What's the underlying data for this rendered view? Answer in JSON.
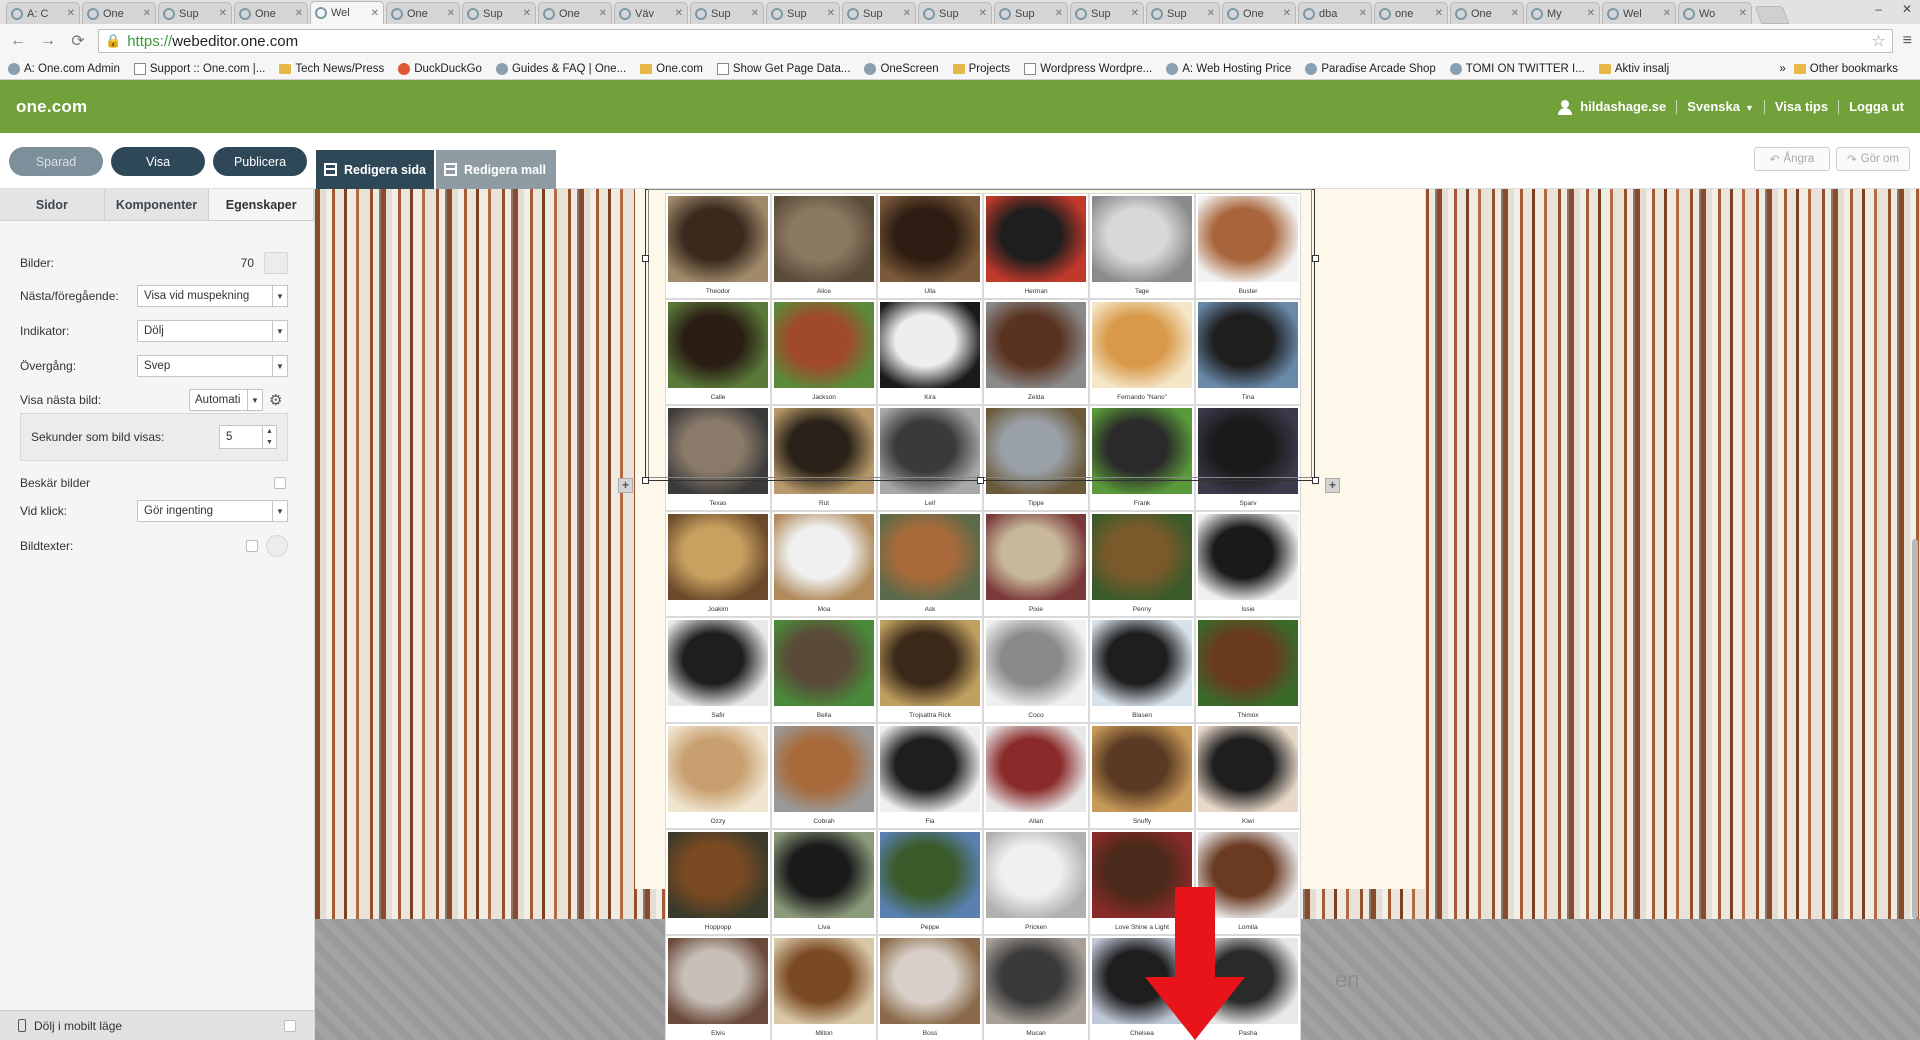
{
  "browser": {
    "tabs": [
      {
        "label": "A: C",
        "active": false
      },
      {
        "label": "One",
        "active": false
      },
      {
        "label": "Sup",
        "active": false
      },
      {
        "label": "One",
        "active": false
      },
      {
        "label": "Wel",
        "active": true
      },
      {
        "label": "One",
        "active": false
      },
      {
        "label": "Sup",
        "active": false
      },
      {
        "label": "One",
        "active": false
      },
      {
        "label": "Väv",
        "active": false
      },
      {
        "label": "Sup",
        "active": false
      },
      {
        "label": "Sup",
        "active": false
      },
      {
        "label": "Sup",
        "active": false
      },
      {
        "label": "Sup",
        "active": false
      },
      {
        "label": "Sup",
        "active": false
      },
      {
        "label": "Sup",
        "active": false
      },
      {
        "label": "Sup",
        "active": false
      },
      {
        "label": "One",
        "active": false
      },
      {
        "label": "dba",
        "active": false
      },
      {
        "label": "one",
        "active": false
      },
      {
        "label": "One",
        "active": false
      },
      {
        "label": "My",
        "active": false
      },
      {
        "label": "Wel",
        "active": false
      },
      {
        "label": "Wo",
        "active": false
      }
    ],
    "url_scheme": "https://",
    "url_rest": "webeditor.one.com",
    "bookmarks": [
      {
        "label": "A: One.com Admin",
        "icon": "globe"
      },
      {
        "label": "Support :: One.com |...",
        "icon": "page"
      },
      {
        "label": "Tech News/Press",
        "icon": "folder"
      },
      {
        "label": "DuckDuckGo",
        "icon": "duck"
      },
      {
        "label": "Guides & FAQ | One...",
        "icon": "globe"
      },
      {
        "label": "One.com",
        "icon": "folder"
      },
      {
        "label": "Show Get Page Data...",
        "icon": "page"
      },
      {
        "label": "OneScreen",
        "icon": "globe"
      },
      {
        "label": "Projects",
        "icon": "folder"
      },
      {
        "label": "Wordpress Wordpre...",
        "icon": "page"
      },
      {
        "label": "A: Web Hosting Price",
        "icon": "globe"
      },
      {
        "label": "Paradise Arcade Shop",
        "icon": "globe"
      },
      {
        "label": "TOMI ON TWITTER I...",
        "icon": "globe"
      },
      {
        "label": "Aktiv insalj",
        "icon": "folder"
      }
    ],
    "bookmarks_overflow": "»",
    "other_bookmarks": "Other bookmarks"
  },
  "header": {
    "logo": "one.com",
    "domain": "hildashage.se",
    "language": "Svenska",
    "tips": "Visa tips",
    "logout": "Logga ut"
  },
  "toolbar": {
    "saved": "Sparad",
    "view": "Visa",
    "publish": "Publicera",
    "edit_page": "Redigera sida",
    "edit_template": "Redigera mall",
    "undo": "Ångra",
    "redo": "Gör om"
  },
  "panel": {
    "tabs": [
      "Sidor",
      "Komponenter",
      "Egenskaper"
    ],
    "bilder_label": "Bilder:",
    "bilder_count": "70",
    "nasta_label": "Nästa/föregående:",
    "nasta_value": "Visa vid muspekning",
    "indikator_label": "Indikator:",
    "indikator_value": "Dölj",
    "overgang_label": "Övergång:",
    "overgang_value": "Svep",
    "visa_nasta_label": "Visa nästa bild:",
    "visa_nasta_value": "Automati",
    "sekunder_label": "Sekunder som bild visas:",
    "sekunder_value": "5",
    "beskar_label": "Beskär bilder",
    "vid_klick_label": "Vid klick:",
    "vid_klick_value": "Gör ingenting",
    "bildtexter_label": "Bildtexter:",
    "mobile_label": "Dölj i mobilt läge"
  },
  "canvas": {
    "footer_text": "en",
    "gallery": [
      {
        "cap": "Theodor",
        "c1": "#3a2a1e",
        "c2": "#a08a6a"
      },
      {
        "cap": "Alice",
        "c1": "#8a7a62",
        "c2": "#5a4a38"
      },
      {
        "cap": "Ulla",
        "c1": "#2e1d12",
        "c2": "#7a5a3a"
      },
      {
        "cap": "Herman",
        "c1": "#1e1e1e",
        "c2": "#c0392b"
      },
      {
        "cap": "Tage",
        "c1": "#d8d8d8",
        "c2": "#8a8a8a"
      },
      {
        "cap": "Buster",
        "c1": "#a8643a",
        "c2": "#f2f2f2"
      },
      {
        "cap": "Calle",
        "c1": "#2a1e14",
        "c2": "#5a7a3a"
      },
      {
        "cap": "Jackson",
        "c1": "#a04a2a",
        "c2": "#5a8a3a"
      },
      {
        "cap": "Kira",
        "c1": "#eeeeee",
        "c2": "#1a1a1a"
      },
      {
        "cap": "Zelda",
        "c1": "#5a3220",
        "c2": "#8a8a8a"
      },
      {
        "cap": "Fernando \"Nano\"",
        "c1": "#d89a4a",
        "c2": "#f5e6c8"
      },
      {
        "cap": "Tina",
        "c1": "#1e1e1e",
        "c2": "#6a8aaa"
      },
      {
        "cap": "Texas",
        "c1": "#8a7a6a",
        "c2": "#3a3a3a"
      },
      {
        "cap": "Rut",
        "c1": "#2a2218",
        "c2": "#b89a6a"
      },
      {
        "cap": "Leif",
        "c1": "#3a3a3a",
        "c2": "#a8a8a8"
      },
      {
        "cap": "Tippe",
        "c1": "#9aa0a8",
        "c2": "#6a5a3a"
      },
      {
        "cap": "Frank",
        "c1": "#2a2a2a",
        "c2": "#5a9a3a"
      },
      {
        "cap": "Sparv",
        "c1": "#1a1a1a",
        "c2": "#3a3a4a"
      },
      {
        "cap": "Joakim",
        "c1": "#c8a060",
        "c2": "#6a4a2a"
      },
      {
        "cap": "Moa",
        "c1": "#f0f0f0",
        "c2": "#b08a5a"
      },
      {
        "cap": "Ask",
        "c1": "#a86a3a",
        "c2": "#5a6a4a"
      },
      {
        "cap": "Pixie",
        "c1": "#c8b89a",
        "c2": "#7a3a3a"
      },
      {
        "cap": "Penny",
        "c1": "#7a5a2a",
        "c2": "#3a5a2a"
      },
      {
        "cap": "Issie",
        "c1": "#1a1a1a",
        "c2": "#f0f0f0"
      },
      {
        "cap": "Safir",
        "c1": "#1e1e1e",
        "c2": "#e8e8e8"
      },
      {
        "cap": "Bella",
        "c1": "#5a4a38",
        "c2": "#4a8a3a"
      },
      {
        "cap": "Trojsattra Rick",
        "c1": "#3a2818",
        "c2": "#c0a060"
      },
      {
        "cap": "Coco",
        "c1": "#8a8a8a",
        "c2": "#f0f0f0"
      },
      {
        "cap": "Blasen",
        "c1": "#1e1e1e",
        "c2": "#d8e2ea"
      },
      {
        "cap": "Thimox",
        "c1": "#6a3a1e",
        "c2": "#3a6a2a"
      },
      {
        "cap": "Ozzy",
        "c1": "#c8a070",
        "c2": "#f0e6d0"
      },
      {
        "cap": "Cobrah",
        "c1": "#a86a3a",
        "c2": "#9a9a9a"
      },
      {
        "cap": "Fia",
        "c1": "#1e1e1e",
        "c2": "#f0f0f0"
      },
      {
        "cap": "Allan",
        "c1": "#8a2a2a",
        "c2": "#e8e8e8"
      },
      {
        "cap": "Snuffy",
        "c1": "#5a3a22",
        "c2": "#c89a5a"
      },
      {
        "cap": "Kiwi",
        "c1": "#1e1e1e",
        "c2": "#e8d8c8"
      },
      {
        "cap": "Hoppopp",
        "c1": "#7a4a22",
        "c2": "#3a3a2a"
      },
      {
        "cap": "Liva",
        "c1": "#1a1a1a",
        "c2": "#8a9a7a"
      },
      {
        "cap": "Peppe",
        "c1": "#3a5a2a",
        "c2": "#5a80b0"
      },
      {
        "cap": "Pricken",
        "c1": "#f0f0f0",
        "c2": "#b0b0b0"
      },
      {
        "cap": "Love Shine a Light",
        "c1": "#4a2a1a",
        "c2": "#8a2a2a"
      },
      {
        "cap": "Lomita",
        "c1": "#6a3a22",
        "c2": "#e8e8e8"
      },
      {
        "cap": "Elvis",
        "c1": "#c8c0b8",
        "c2": "#6a4a3a"
      },
      {
        "cap": "Milton",
        "c1": "#7a4a22",
        "c2": "#d8c8a8"
      },
      {
        "cap": "Boss",
        "c1": "#d8d0c8",
        "c2": "#8a6a4a"
      },
      {
        "cap": "Mucan",
        "c1": "#3a3a3a",
        "c2": "#a8a098"
      },
      {
        "cap": "Chelsea",
        "c1": "#1e1e1e",
        "c2": "#c0c8d8"
      },
      {
        "cap": "Pasha",
        "c1": "#2a2a2a",
        "c2": "#e8e8e8"
      }
    ]
  }
}
